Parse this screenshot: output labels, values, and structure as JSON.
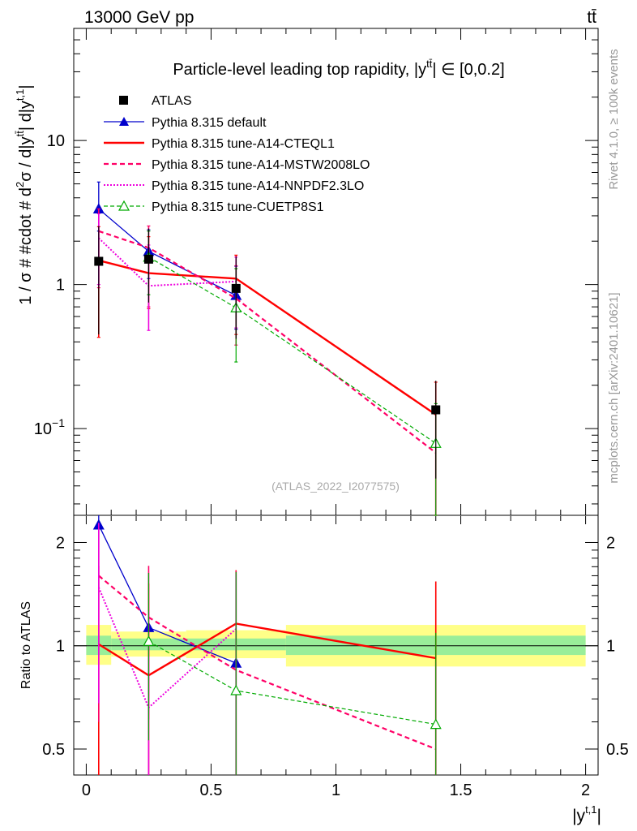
{
  "header": {
    "beam": "13000 GeV pp",
    "process": "tt̄"
  },
  "side": {
    "rivet": "Rivet 4.1.0, ≥ 100k events",
    "mcplots": "mcplots.cern.ch [arXiv:2401.10621]"
  },
  "chart_data": {
    "type": "line",
    "title": "Particle-level leading top rapidity, |y^{tt̄}| ∈ [0,0.2]",
    "title_main": "Particle-level leading top rapidity, |y",
    "title_sup": "tt̄",
    "title_tail": "| ∈ [0,0.2]",
    "ylabel": "1 / σ #  #cdot # d²σ / d|y^{tt̄}| d|y^{t,1}|",
    "ylabel_main": "1 / σ # #cdot # d",
    "ylabel_sup1": "2",
    "ylabel_mid": "σ / d|y",
    "ylabel_sup2": "tt̄",
    "ylabel_mid2": "| d|y",
    "ylabel_sup3": "t,1",
    "ylabel_tail": "|",
    "xlabel": "|y^{t,1}|",
    "xlabel_main": "|y",
    "xlabel_sup": "t,1",
    "xlabel_tail": "|",
    "ratio_ylabel": "Ratio to ATLAS",
    "analysis_id": "(ATLAS_2022_I2077575)",
    "xlim": [
      -0.05,
      2.05
    ],
    "ylim": [
      0.025,
      60
    ],
    "ratio_ylim": [
      0.42,
      2.4
    ],
    "scale": "log",
    "x_ticks": [
      0,
      0.5,
      1,
      1.5,
      2
    ],
    "x_tick_labels": [
      "0",
      "0.5",
      "1",
      "1.5",
      "2"
    ],
    "y_major_labels": [
      {
        "v": 10,
        "text": "10"
      },
      {
        "v": 1,
        "text": "1"
      },
      {
        "v": 0.1,
        "text": "10",
        "sup": "−1"
      }
    ],
    "ratio_labels": [
      {
        "v": 2,
        "text": "2"
      },
      {
        "v": 1,
        "text": "1"
      },
      {
        "v": 0.5,
        "text": "0.5"
      }
    ],
    "bins": [
      [
        0,
        0.1
      ],
      [
        0.1,
        0.4
      ],
      [
        0.4,
        0.8
      ],
      [
        0.8,
        2.0
      ]
    ],
    "data": {
      "name": "ATLAS",
      "x": [
        0.05,
        0.25,
        0.6,
        1.4
      ],
      "y": [
        1.45,
        1.5,
        0.94,
        0.135
      ],
      "err_lo": [
        1.0,
        0.75,
        0.52,
        0.09
      ],
      "err_hi": [
        1.1,
        0.95,
        0.62,
        0.08
      ]
    },
    "bands": {
      "ratio_stat_lo": [
        0.94,
        0.97,
        0.97,
        0.94
      ],
      "ratio_stat_hi": [
        1.07,
        1.05,
        1.05,
        1.07
      ],
      "ratio_tot_lo": [
        0.88,
        0.93,
        0.92,
        0.87
      ],
      "ratio_tot_hi": [
        1.15,
        1.1,
        1.11,
        1.15
      ]
    },
    "series": [
      {
        "name": "Pythia 8.315 default",
        "color": "#0000cc",
        "dash": "",
        "width": 1.3,
        "marker": "triangle",
        "x": [
          0.05,
          0.25,
          0.6,
          1.4
        ],
        "y": [
          3.35,
          1.7,
          0.84,
          null
        ],
        "err_lo": [
          1.0,
          0.6,
          0.35,
          null
        ],
        "err_hi": [
          1.8,
          0.7,
          0.5,
          null
        ]
      },
      {
        "name": "Pythia 8.315 tune-A14-CTEQL1",
        "color": "#ff0000",
        "dash": "",
        "width": 2.4,
        "marker": "none",
        "x": [
          0.05,
          0.25,
          0.6,
          1.4
        ],
        "y": [
          1.47,
          1.2,
          1.1,
          0.125
        ],
        "err_lo": [
          1.04,
          0.52,
          0.65,
          0.1
        ],
        "err_hi": [
          1.05,
          0.95,
          0.5,
          0.085
        ]
      },
      {
        "name": "Pythia 8.315 tune-A14-MSTW2008LO",
        "color": "#ff0066",
        "dash": "6,4",
        "width": 2.2,
        "marker": "none",
        "x": [
          0.05,
          0.25,
          0.6,
          1.4
        ],
        "y": [
          2.35,
          1.8,
          0.8,
          0.068
        ],
        "err_lo": [
          1.4,
          1.1,
          0.42,
          0.05
        ],
        "err_hi": [
          1.0,
          0.75,
          0.55,
          0.06
        ]
      },
      {
        "name": "Pythia 8.315 tune-A14-NNPDF2.3LO",
        "color": "#ee00dd",
        "dash": "2,2",
        "width": 2.0,
        "marker": "none",
        "x": [
          0.05,
          0.25,
          0.6,
          1.4
        ],
        "y": [
          2.1,
          0.98,
          1.05,
          null
        ],
        "err_lo": [
          1.1,
          0.5,
          0.55,
          null
        ],
        "err_hi": [
          1.0,
          0.9,
          0.5,
          null
        ]
      },
      {
        "name": "Pythia 8.315 tune-CUETP8S1",
        "color": "#00aa00",
        "dash": "5,3",
        "width": 1.2,
        "marker": "open-triangle",
        "x": [
          0.05,
          0.25,
          0.6,
          1.4
        ],
        "y": [
          null,
          1.55,
          0.69,
          0.079
        ],
        "err_lo": [
          null,
          0.7,
          0.4,
          0.055
        ],
        "err_hi": [
          null,
          0.8,
          0.6,
          0.07
        ]
      }
    ],
    "ratios": [
      {
        "name": "Pythia 8.315 default",
        "x": [
          0.05,
          0.25,
          0.6
        ],
        "y": [
          2.25,
          1.13,
          0.89
        ],
        "err_lo": [
          0.8,
          0.5,
          0.5
        ],
        "err_hi": [
          0.3,
          0.5,
          0.7
        ]
      },
      {
        "name": "Pythia 8.315 tune-A14-CTEQL1",
        "x": [
          0.05,
          0.25,
          0.6,
          1.4
        ],
        "y": [
          1.01,
          0.82,
          1.16,
          0.92
        ],
        "err_lo": [
          0.7,
          0.4,
          0.8,
          0.6
        ],
        "err_hi": [
          0.7,
          0.7,
          0.5,
          0.62
        ]
      },
      {
        "name": "Pythia 8.315 tune-A14-MSTW2008LO",
        "x": [
          0.05,
          0.25,
          0.6,
          1.4
        ],
        "y": [
          1.6,
          1.21,
          0.85,
          0.5
        ],
        "err_lo": [
          1.0,
          0.6,
          0.45,
          0.2
        ],
        "err_hi": [
          0.6,
          0.5,
          0.8,
          0.4
        ]
      },
      {
        "name": "Pythia 8.315 tune-A14-NNPDF2.3LO",
        "x": [
          0.05,
          0.25,
          0.6
        ],
        "y": [
          1.48,
          0.66,
          1.12
        ],
        "err_lo": [
          0.8,
          0.3,
          0.7
        ],
        "err_hi": [
          0.8,
          0.6,
          0.5
        ]
      },
      {
        "name": "Pythia 8.315 tune-CUETP8S1",
        "x": [
          0.25,
          0.6,
          1.4
        ],
        "y": [
          1.03,
          0.74,
          0.59
        ],
        "err_lo": [
          0.5,
          0.4,
          0.3
        ],
        "err_hi": [
          0.6,
          0.9,
          0.5
        ]
      }
    ]
  }
}
